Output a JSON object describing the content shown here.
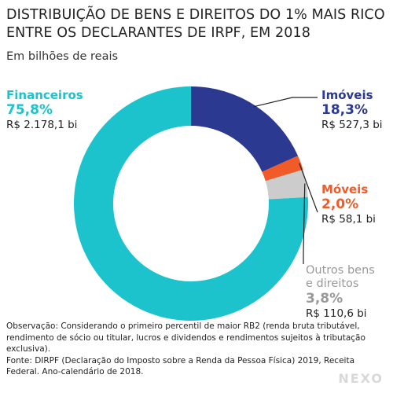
{
  "chart_data": {
    "type": "pie",
    "title": "DISTRIBUIÇÃO DE BENS E DIREITOS DO 1% MAIS RICO ENTRE OS DECLARANTES DE IRPF, EM 2018",
    "subtitle": "Em bilhões de reais",
    "series": [
      {
        "name": "Imóveis",
        "percent": 18.3,
        "percent_label": "18,3%",
        "value": 527.3,
        "value_label": "R$ 527,3 bi",
        "color": "#2b3990"
      },
      {
        "name": "Móveis",
        "percent": 2.0,
        "percent_label": "2,0%",
        "value": 58.1,
        "value_label": "R$ 58,1 bi",
        "color": "#f15a29"
      },
      {
        "name": "Outros bens e direitos",
        "name_lines": [
          "Outros bens",
          "e direitos"
        ],
        "percent": 3.8,
        "percent_label": "3,8%",
        "value": 110.6,
        "value_label": "R$ 110,6 bi",
        "color": "#cccccc"
      },
      {
        "name": "Financeiros",
        "percent": 75.8,
        "percent_label": "75,8%",
        "value": 2178.1,
        "value_label": "R$ 2.178,1 bi",
        "color": "#1cc3cc"
      }
    ]
  },
  "footnote": {
    "observation": "Observação: Considerando o primeiro percentil de maior RB2 (renda bruta tributável, rendimento de sócio ou titular, lucros e dividendos e rendimentos sujeitos à tributação exclusiva).",
    "source": "Fonte: DIRPF (Declaração do Imposto sobre a Renda da Pessoa Física) 2019, Receita Federal. Ano-calendário de 2018."
  },
  "logo": "NEXO"
}
